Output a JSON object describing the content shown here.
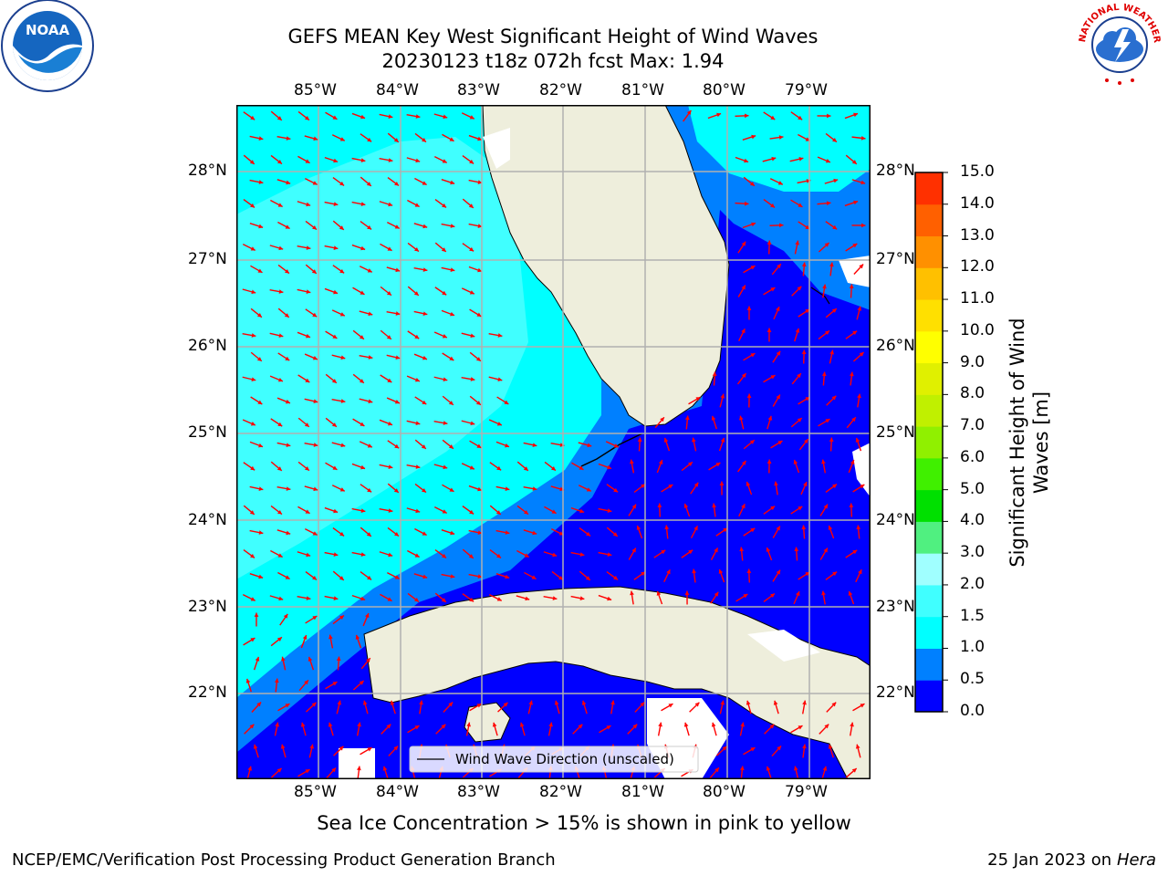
{
  "title": {
    "line1": "GEFS MEAN Key West Significant Height of Wind Waves",
    "line2": "20230123 t18z 072h fcst   Max: 1.94"
  },
  "logos": {
    "left_icon": "noaa-logo",
    "left_text": "NOAA",
    "right_icon": "nws-logo",
    "right_text": "NATIONAL WEATHER SERVICE"
  },
  "map": {
    "lon_labels": [
      "85°W",
      "84°W",
      "83°W",
      "82°W",
      "81°W",
      "80°W",
      "79°W"
    ],
    "lat_labels": [
      "28°N",
      "27°N",
      "26°N",
      "25°N",
      "24°N",
      "23°N",
      "22°N"
    ],
    "legend_label": "Wind Wave Direction (unscaled)",
    "colors": {
      "land": "#eeeedc",
      "grid": "#b0b0b0",
      "arrow": "#ff0000",
      "coast": "#000000"
    }
  },
  "colorbar": {
    "label": "Significant Height of Wind Waves [m]",
    "ticks": [
      "0.0",
      "0.5",
      "1.0",
      "1.5",
      "2.0",
      "3.0",
      "4.0",
      "5.0",
      "6.0",
      "7.0",
      "8.0",
      "9.0",
      "10.0",
      "11.0",
      "12.0",
      "13.0",
      "14.0",
      "15.0"
    ],
    "colors": [
      "#0000ff",
      "#0080ff",
      "#00ffff",
      "#40ffff",
      "#a0ffff",
      "#50f080",
      "#00e000",
      "#40f000",
      "#90f000",
      "#c0f000",
      "#e0f000",
      "#ffff00",
      "#ffe000",
      "#ffc000",
      "#ff9000",
      "#ff6000",
      "#ff3000",
      "#ff0000"
    ]
  },
  "subtitle": "Sea Ice Concentration > 15% is shown in pink to yellow",
  "footer": {
    "left": "NCEP/EMC/Verification Post Processing Product Generation Branch",
    "right_date": "25 Jan 2023 on ",
    "right_host": "Hera"
  }
}
